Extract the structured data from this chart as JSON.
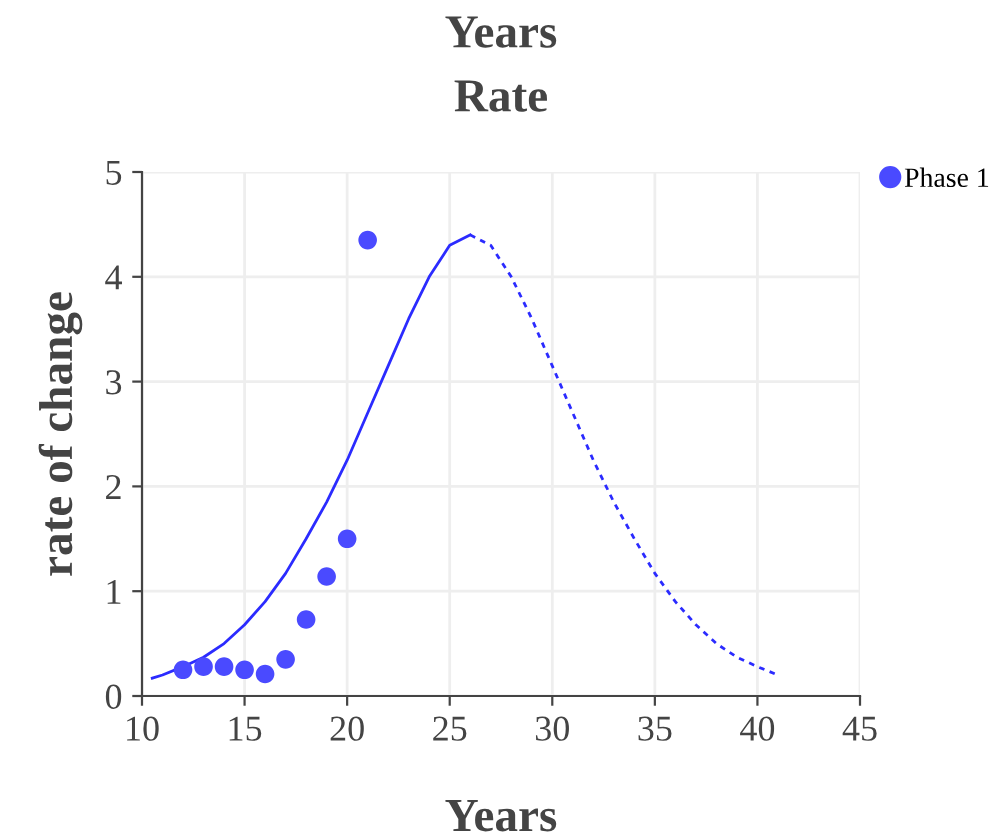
{
  "chart_data": {
    "type": "scatter",
    "title": "Years",
    "subtitle": "Rate",
    "xlabel": "Years",
    "ylabel": "rate of change",
    "xlim": [
      10,
      45
    ],
    "xticks": [
      10,
      15,
      20,
      25,
      30,
      35,
      40,
      45
    ],
    "ylim": [
      0,
      5
    ],
    "yticks": [
      0,
      1,
      2,
      3,
      4,
      5
    ],
    "grid": true,
    "legend": "top right",
    "series": [
      {
        "name": "Phase 1",
        "marker": "circle",
        "color": "#4a4aff",
        "x": [
          12,
          13,
          14,
          15,
          16,
          17,
          18,
          19,
          20,
          21
        ],
        "values": [
          0.25,
          0.28,
          0.28,
          0.25,
          0.21,
          0.35,
          0.73,
          1.14,
          1.5,
          4.35
        ]
      },
      {
        "type": "line",
        "line_style": "solid",
        "color": "#2b2bff",
        "x": [
          10.5,
          11,
          12,
          13,
          14,
          15,
          16,
          17,
          18,
          19,
          20,
          21,
          22,
          23,
          24,
          25,
          26
        ],
        "values": [
          0.17,
          0.2,
          0.28,
          0.37,
          0.5,
          0.68,
          0.9,
          1.17,
          1.5,
          1.85,
          2.25,
          2.7,
          3.15,
          3.6,
          4.0,
          4.3,
          4.4
        ]
      },
      {
        "type": "line",
        "line_style": "dashed",
        "color": "#2b2bff",
        "x": [
          26,
          27,
          28,
          29,
          30,
          31,
          32,
          33,
          34,
          35,
          36,
          37,
          38,
          39,
          40,
          41
        ],
        "values": [
          4.4,
          4.3,
          4.0,
          3.6,
          3.15,
          2.7,
          2.25,
          1.85,
          1.5,
          1.17,
          0.9,
          0.68,
          0.5,
          0.37,
          0.28,
          0.2
        ]
      }
    ]
  }
}
